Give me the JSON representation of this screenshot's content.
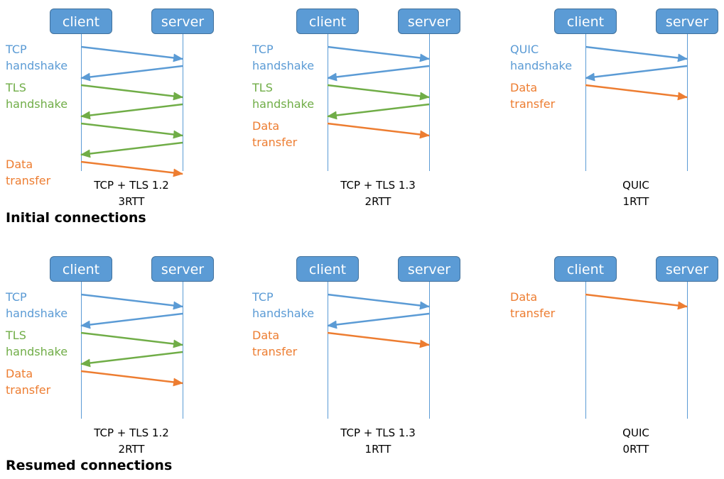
{
  "colors": {
    "tcp": "#5B9BD5",
    "tls": "#70AD47",
    "data": "#ED7D31",
    "box": "#5B9BD5",
    "box_text": "#FFFFFF"
  },
  "sections": [
    {
      "title": "Initial connections",
      "panels": [
        {
          "client_label": "client",
          "server_label": "server",
          "caption_line1": "TCP + TLS 1.2",
          "caption_line2": "3RTT",
          "phases": [
            {
              "lines": [
                "TCP",
                "handshake"
              ],
              "color_key": "tcp"
            },
            {
              "lines": [
                "TLS",
                "handshake"
              ],
              "color_key": "tls"
            },
            {
              "lines": [
                "Data",
                "transfer"
              ],
              "color_key": "data"
            }
          ],
          "messages": [
            {
              "phase": 0,
              "dir": "c2s"
            },
            {
              "phase": 0,
              "dir": "s2c"
            },
            {
              "phase": 1,
              "dir": "c2s"
            },
            {
              "phase": 1,
              "dir": "s2c"
            },
            {
              "phase": 1,
              "dir": "c2s"
            },
            {
              "phase": 1,
              "dir": "s2c"
            },
            {
              "phase": 2,
              "dir": "c2s"
            }
          ]
        },
        {
          "client_label": "client",
          "server_label": "server",
          "caption_line1": "TCP + TLS 1.3",
          "caption_line2": "2RTT",
          "phases": [
            {
              "lines": [
                "TCP",
                "handshake"
              ],
              "color_key": "tcp"
            },
            {
              "lines": [
                "TLS",
                "handshake"
              ],
              "color_key": "tls"
            },
            {
              "lines": [
                "Data",
                "transfer"
              ],
              "color_key": "data"
            }
          ],
          "messages": [
            {
              "phase": 0,
              "dir": "c2s"
            },
            {
              "phase": 0,
              "dir": "s2c"
            },
            {
              "phase": 1,
              "dir": "c2s"
            },
            {
              "phase": 1,
              "dir": "s2c"
            },
            {
              "phase": 2,
              "dir": "c2s"
            }
          ]
        },
        {
          "client_label": "client",
          "server_label": "server",
          "caption_line1": "QUIC",
          "caption_line2": "1RTT",
          "phases": [
            {
              "lines": [
                "QUIC",
                "handshake"
              ],
              "color_key": "tcp"
            },
            {
              "lines": [
                "Data",
                "transfer"
              ],
              "color_key": "data"
            }
          ],
          "messages": [
            {
              "phase": 0,
              "dir": "c2s"
            },
            {
              "phase": 0,
              "dir": "s2c"
            },
            {
              "phase": 1,
              "dir": "c2s"
            }
          ]
        }
      ]
    },
    {
      "title": "Resumed connections",
      "panels": [
        {
          "client_label": "client",
          "server_label": "server",
          "caption_line1": "TCP + TLS 1.2",
          "caption_line2": "2RTT",
          "phases": [
            {
              "lines": [
                "TCP",
                "handshake"
              ],
              "color_key": "tcp"
            },
            {
              "lines": [
                "TLS",
                "handshake"
              ],
              "color_key": "tls"
            },
            {
              "lines": [
                "Data",
                "transfer"
              ],
              "color_key": "data"
            }
          ],
          "messages": [
            {
              "phase": 0,
              "dir": "c2s"
            },
            {
              "phase": 0,
              "dir": "s2c"
            },
            {
              "phase": 1,
              "dir": "c2s"
            },
            {
              "phase": 1,
              "dir": "s2c"
            },
            {
              "phase": 2,
              "dir": "c2s"
            }
          ]
        },
        {
          "client_label": "client",
          "server_label": "server",
          "caption_line1": "TCP + TLS 1.3",
          "caption_line2": "1RTT",
          "phases": [
            {
              "lines": [
                "TCP",
                "handshake"
              ],
              "color_key": "tcp"
            },
            {
              "lines": [
                "Data",
                "transfer"
              ],
              "color_key": "data"
            }
          ],
          "messages": [
            {
              "phase": 0,
              "dir": "c2s"
            },
            {
              "phase": 0,
              "dir": "s2c"
            },
            {
              "phase": 1,
              "dir": "c2s"
            }
          ]
        },
        {
          "client_label": "client",
          "server_label": "server",
          "caption_line1": "QUIC",
          "caption_line2": "0RTT",
          "phases": [
            {
              "lines": [
                "Data",
                "transfer"
              ],
              "color_key": "data"
            }
          ],
          "messages": [
            {
              "phase": 0,
              "dir": "c2s"
            }
          ]
        }
      ]
    }
  ]
}
